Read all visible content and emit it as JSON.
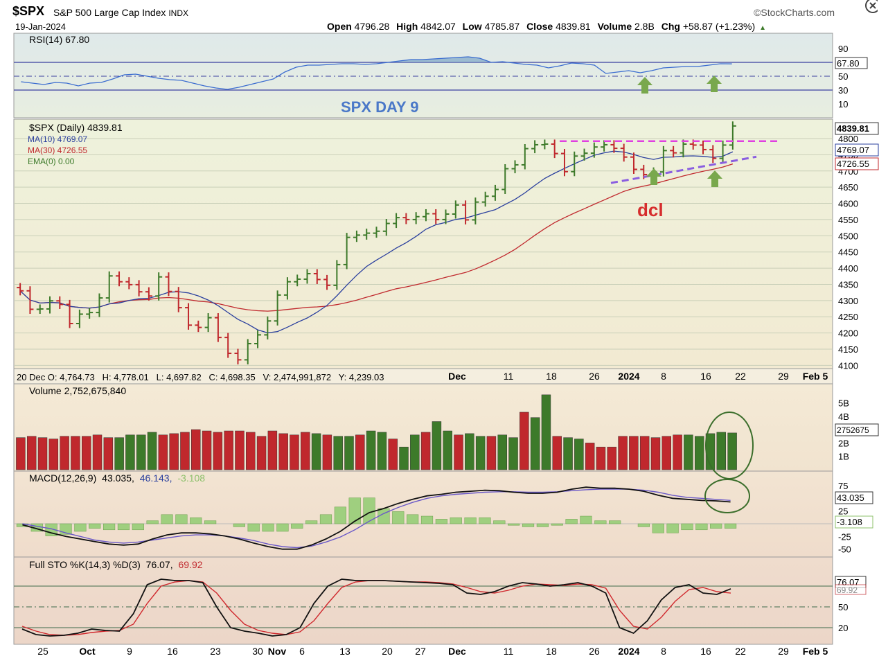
{
  "header": {
    "symbol": "$SPX",
    "name": "S&P 500 Large Cap Index",
    "exchange": "INDX",
    "date": "19-Jan-2024",
    "logo": "©StockCharts.com",
    "open_label": "Open",
    "open": "4796.28",
    "high_label": "High",
    "high": "4842.07",
    "low_label": "Low",
    "low": "4785.87",
    "close_label": "Close",
    "close": "4839.81",
    "volume_label": "Volume",
    "volume": "2.8B",
    "chg_label": "Chg",
    "chg": "+58.87 (+1.23%)",
    "chg_arrow": "▲"
  },
  "rsi_panel": {
    "label": "RSI(14) 67.80",
    "value_tag": "67.80",
    "ticks": [
      "90",
      "70",
      "50",
      "30",
      "10"
    ],
    "annotation": "SPX DAY 9"
  },
  "price_panel": {
    "legend_main": "$SPX (Daily) 4839.81",
    "legend_ma10": "MA(10) 4769.07",
    "legend_ma30": "MA(30) 4726.55",
    "legend_ema": "EMA(0) 0.00",
    "tag_close": "4839.81",
    "tag_ma10": "4769.07",
    "tag_ma30": "4726.55",
    "ticks": [
      "4800",
      "4750",
      "4700",
      "4650",
      "4600",
      "4550",
      "4500",
      "4450",
      "4400",
      "4350",
      "4300",
      "4250",
      "4200",
      "4150",
      "4100"
    ],
    "annotation": "dcl",
    "info_bar": "20 Dec O: 4,764.73   H: 4,778.01   L: 4,697.82   C: 4,698.35   V: 2,474,991,872   Y: 4,239.03",
    "mid_axis_labels": [
      "Dec",
      "11",
      "18",
      "26",
      "2024",
      "8",
      "16",
      "22",
      "29",
      "Feb 5"
    ]
  },
  "volume_panel": {
    "label": "Volume 2,752,675,840",
    "ticks": [
      "5B",
      "4B",
      "2B",
      "1B"
    ],
    "value_tag": "2752675"
  },
  "macd_panel": {
    "label": "MACD(12,26,9)",
    "macd": "43.035,",
    "signal": "46.143,",
    "hist": "-3.108",
    "ticks": [
      "75",
      "25",
      "-25",
      "-50"
    ],
    "tag_macd": "43.035",
    "tag_hist": "-3.108"
  },
  "sto_panel": {
    "label": "Full STO %K(14,3) %D(3)",
    "k": "76.07,",
    "d": "69.92",
    "ticks": [
      "50",
      "20"
    ],
    "tag_k": "76.07",
    "tag_d": "69.92"
  },
  "x_axis": {
    "labels": [
      "25",
      "Oct",
      "9",
      "16",
      "23",
      "30",
      "Nov",
      "6",
      "13",
      "20",
      "27",
      "Dec",
      "11",
      "18",
      "26",
      "2024",
      "8",
      "16",
      "22",
      "29",
      "Feb 5"
    ]
  },
  "colors": {
    "up": "#3d7a2a",
    "down": "#c0282d",
    "ma10": "#2a3f9e",
    "ma30": "#c0282d",
    "pink_dash": "#e040e0",
    "purple_dash": "#8a5ee0",
    "arrow": "#79a84d",
    "circle": "#3b6e2b",
    "rsi_line": "#3a6cd0"
  },
  "chart_data": {
    "type": "line",
    "title": "$SPX S&P 500 Large Cap Index INDX",
    "x_range": [
      "2023-09-21",
      "2024-01-19"
    ],
    "series": [
      {
        "name": "$SPX (Daily)",
        "type": "ohlc",
        "close": [
          4330,
          4273,
          4274,
          4299,
          4288,
          4229,
          4258,
          4263,
          4308,
          4376,
          4358,
          4349,
          4327,
          4314,
          4373,
          4328,
          4278,
          4224,
          4217,
          4247,
          4186,
          4137,
          4117,
          4167,
          4194,
          4237,
          4317,
          4358,
          4366,
          4383,
          4365,
          4347,
          4411,
          4495,
          4502,
          4508,
          4514,
          4538,
          4556,
          4550,
          4559,
          4568,
          4550,
          4567,
          4595,
          4549,
          4604,
          4622,
          4643,
          4707,
          4719,
          4769,
          4781,
          4783,
          4754,
          4698,
          4746,
          4755,
          4774,
          4781,
          4770,
          4743,
          4705,
          4689,
          4697,
          4763,
          4756,
          4783,
          4780,
          4766,
          4739,
          4780,
          4839
        ]
      },
      {
        "name": "MA(10)",
        "last": 4769.07
      },
      {
        "name": "MA(30)",
        "last": 4726.55
      },
      {
        "name": "RSI(14)",
        "values": [
          42,
          40,
          38,
          41,
          40,
          36,
          40,
          41,
          46,
          52,
          53,
          50,
          47,
          45,
          44,
          40,
          36,
          33,
          31,
          34,
          38,
          42,
          46,
          56,
          63,
          66,
          66,
          67,
          68,
          68,
          67,
          68,
          70,
          72,
          74,
          74,
          75,
          76,
          77,
          78,
          76,
          70,
          71,
          69,
          67,
          66,
          62,
          65,
          69,
          68,
          66,
          54,
          56,
          58,
          55,
          58,
          62,
          63,
          64,
          64,
          66,
          68,
          67.8
        ]
      },
      {
        "name": "Volume (B)",
        "values": [
          2.4,
          2.5,
          2.4,
          2.3,
          2.5,
          2.5,
          2.5,
          2.6,
          2.4,
          2.4,
          2.6,
          2.6,
          2.8,
          2.6,
          2.7,
          2.8,
          3.0,
          2.9,
          2.8,
          2.9,
          2.9,
          2.8,
          2.5,
          2.9,
          2.7,
          2.6,
          2.8,
          2.7,
          2.6,
          2.5,
          2.5,
          2.6,
          2.9,
          2.8,
          2.3,
          1.7,
          2.6,
          2.8,
          3.6,
          2.9,
          2.6,
          2.7,
          2.5,
          2.5,
          2.6,
          2.4,
          4.3,
          3.9,
          5.6,
          2.5,
          2.4,
          2.3,
          2.0,
          1.7,
          1.7,
          2.5,
          2.5,
          2.5,
          2.4,
          2.5,
          2.6,
          2.6,
          2.5,
          2.7,
          2.8,
          2.75
        ]
      },
      {
        "name": "MACD",
        "values": [
          -2,
          -10,
          -18,
          -25,
          -30,
          -35,
          -40,
          -42,
          -40,
          -30,
          -22,
          -18,
          -18,
          -20,
          -24,
          -30,
          -38,
          -45,
          -50,
          -50,
          -42,
          -30,
          -15,
          5,
          22,
          30,
          40,
          48,
          55,
          58,
          62,
          64,
          66,
          65,
          62,
          60,
          60,
          62,
          68,
          72,
          70,
          70,
          68,
          64,
          56,
          50,
          48,
          46,
          45,
          43
        ]
      },
      {
        "name": "Signal",
        "values": [
          0,
          -5,
          -10,
          -18,
          -25,
          -32,
          -36,
          -38,
          -36,
          -32,
          -28,
          -24,
          -22,
          -22,
          -24,
          -28,
          -33,
          -40,
          -45,
          -47,
          -44,
          -36,
          -26,
          -12,
          5,
          20,
          32,
          42,
          50,
          55,
          58,
          60,
          62,
          63,
          63,
          62,
          62,
          63,
          65,
          67,
          68,
          68,
          68,
          66,
          62,
          56,
          52,
          50,
          48,
          46
        ]
      },
      {
        "name": "Full STO %K",
        "values": [
          18,
          10,
          8,
          9,
          12,
          18,
          16,
          15,
          40,
          82,
          90,
          88,
          88,
          85,
          50,
          20,
          15,
          12,
          8,
          10,
          20,
          55,
          80,
          90,
          88,
          88,
          88,
          87,
          86,
          85,
          84,
          82,
          70,
          68,
          72,
          80,
          85,
          83,
          80,
          82,
          85,
          80,
          70,
          20,
          12,
          30,
          60,
          78,
          82,
          70,
          68,
          76.07
        ]
      },
      {
        "name": "Full STO %D",
        "values": [
          22,
          15,
          10,
          9,
          10,
          13,
          15,
          16,
          25,
          55,
          80,
          86,
          88,
          86,
          70,
          45,
          25,
          16,
          12,
          10,
          14,
          30,
          55,
          78,
          86,
          88,
          88,
          87,
          86,
          86,
          85,
          83,
          78,
          72,
          70,
          74,
          80,
          83,
          82,
          81,
          83,
          82,
          77,
          45,
          22,
          18,
          35,
          58,
          75,
          78,
          72,
          69.92
        ]
      }
    ],
    "ylim_price": [
      4090,
      4860
    ],
    "ylim_rsi": [
      0,
      100
    ],
    "ylim_macd": [
      -60,
      90
    ],
    "ylim_sto": [
      0,
      100
    ],
    "annotations": [
      "SPX DAY 9",
      "dcl"
    ]
  }
}
